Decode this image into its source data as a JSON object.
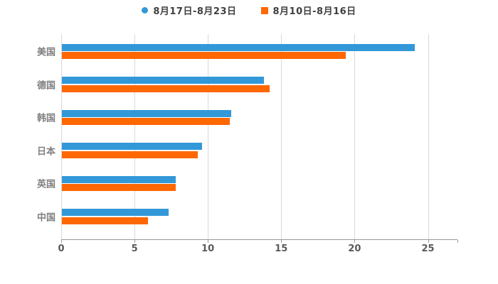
{
  "chart_data": {
    "type": "bar",
    "orientation": "horizontal",
    "title": "",
    "xlabel": "",
    "ylabel": "",
    "categories": [
      "美国",
      "德国",
      "韩国",
      "日本",
      "英国",
      "中国"
    ],
    "series": [
      {
        "name": "8月17日-8月23日",
        "color": "#3398D8",
        "marker": "circle",
        "values": [
          24.1,
          13.8,
          11.6,
          9.6,
          7.8,
          7.3
        ]
      },
      {
        "name": "8月10日-8月16日",
        "color": "#FF6701",
        "marker": "square",
        "values": [
          19.4,
          14.2,
          11.5,
          9.3,
          7.8,
          5.9
        ]
      }
    ],
    "x_ticks": [
      0,
      5,
      10,
      15,
      20,
      25
    ],
    "xlim": [
      0,
      27
    ],
    "grid": true,
    "legend_position": "top-center",
    "colors": {
      "background": "#FFFFFF",
      "gridline": "#D9D9D9",
      "axis_line": "#999999",
      "tick_label": "#595959",
      "category_label": "#7F7F7F",
      "legend_text": "#404040"
    }
  }
}
